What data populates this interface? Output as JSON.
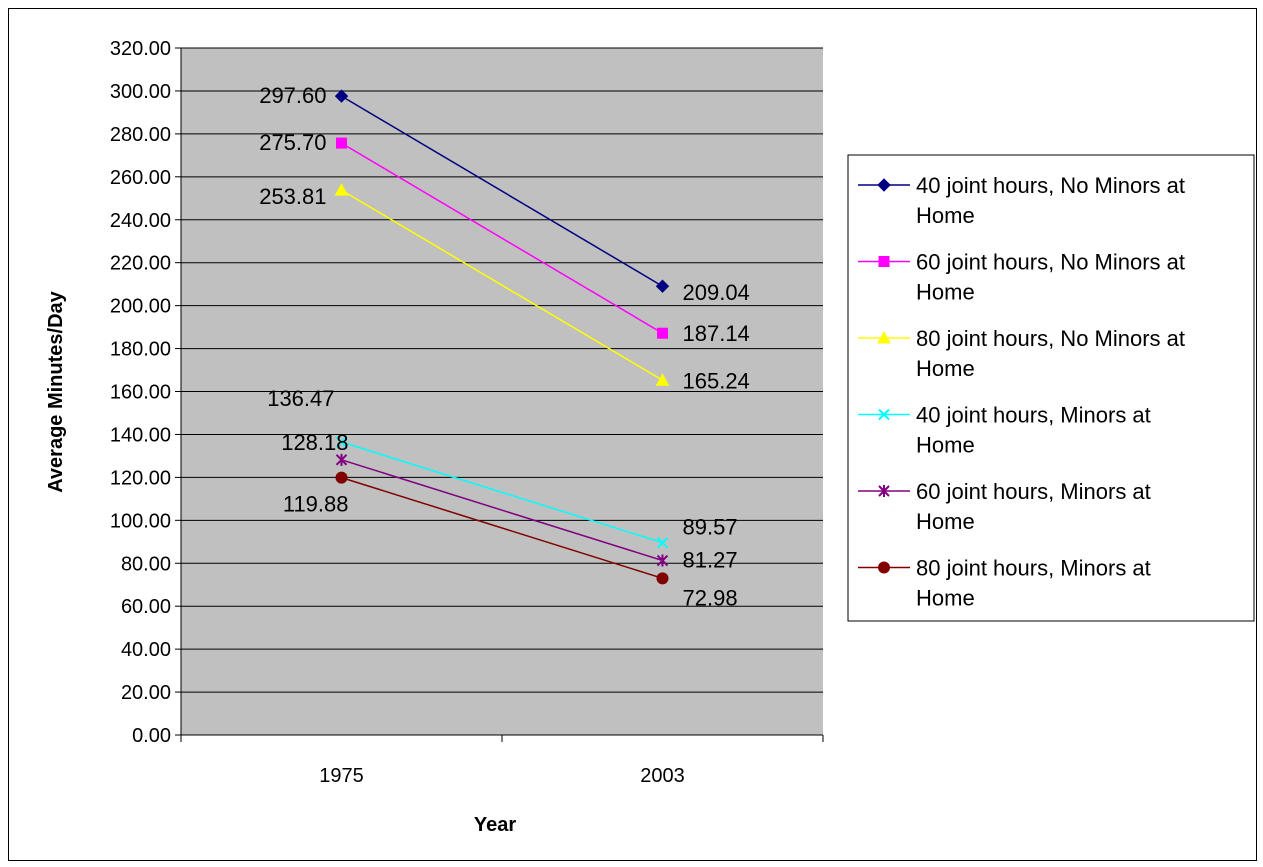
{
  "chart_data": {
    "type": "line",
    "title": "",
    "xlabel": "Year",
    "ylabel": "Average Minutes/Day",
    "categories": [
      "1975",
      "2003"
    ],
    "ylim": [
      0,
      320
    ],
    "yticks": [
      "0.00",
      "20.00",
      "40.00",
      "60.00",
      "80.00",
      "100.00",
      "120.00",
      "140.00",
      "160.00",
      "180.00",
      "200.00",
      "220.00",
      "240.00",
      "260.00",
      "280.00",
      "300.00",
      "320.00"
    ],
    "grid": true,
    "legend": "right",
    "plot_background": "#c0c0c0",
    "series": [
      {
        "name": "40 joint hours, No Minors at Home",
        "values": [
          297.6,
          209.04
        ],
        "labels": [
          "297.60",
          "209.04"
        ],
        "color": "#000080",
        "marker": "diamond"
      },
      {
        "name": "60 joint hours, No Minors at Home",
        "values": [
          275.7,
          187.14
        ],
        "labels": [
          "275.70",
          "187.14"
        ],
        "color": "#ff00ff",
        "marker": "square"
      },
      {
        "name": "80 joint hours, No Minors at Home",
        "values": [
          253.81,
          165.24
        ],
        "labels": [
          "253.81",
          "165.24"
        ],
        "color": "#ffff00",
        "marker": "triangle"
      },
      {
        "name": "40 joint hours, Minors at Home",
        "values": [
          136.47,
          89.57
        ],
        "labels": [
          "136.47",
          "89.57"
        ],
        "color": "#00ffff",
        "marker": "x"
      },
      {
        "name": "60 joint hours, Minors at Home",
        "values": [
          128.18,
          81.27
        ],
        "labels": [
          "128.18",
          "81.27"
        ],
        "color": "#800080",
        "marker": "star"
      },
      {
        "name": "80 joint hours, Minors at Home",
        "values": [
          119.88,
          72.98
        ],
        "labels": [
          "119.88",
          "72.98"
        ],
        "color": "#800000",
        "marker": "circle"
      }
    ]
  }
}
